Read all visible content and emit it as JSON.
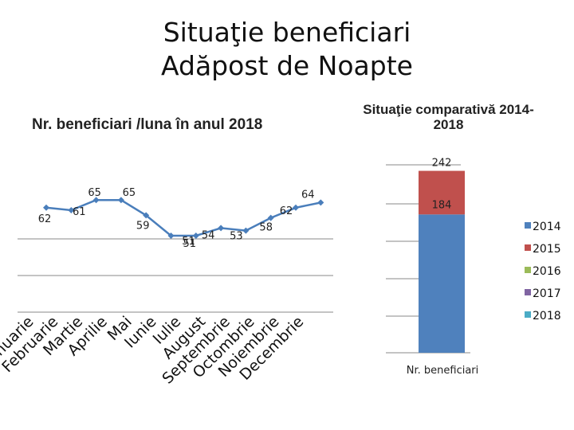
{
  "title_line1": "Situaţie beneficiari",
  "title_line2": "Adăpost de Noapte",
  "subtitle_left": "Nr. beneficiari /luna în anul 2018",
  "subtitle_right_line1": "Situaţie comparativă 2014-",
  "subtitle_right_line2": "2018",
  "colors": {
    "line": "#4a7ebb",
    "grid": "#8a8a8a",
    "s2014": "#4f81bd",
    "s2015": "#c0504d",
    "s2016": "#9bbb59",
    "s2017": "#8064a2",
    "s2018": "#4bacc6"
  },
  "chart_data": [
    {
      "type": "line",
      "title": "Nr. beneficiari /luna în anul 2018",
      "categories": [
        "Ianuarie",
        "Februarie",
        "Martie",
        "Aprilie",
        "Mai",
        "Iunie",
        "Iulie",
        "August",
        "Septembrie",
        "Octombrie",
        "Noiembrie",
        "Decembrie"
      ],
      "points": [
        62,
        61,
        65,
        65,
        59,
        51,
        51,
        54,
        53,
        58,
        62,
        64
      ],
      "label_order": [
        "62",
        "61",
        "65",
        "65",
        "59",
        "51",
        "51",
        "54",
        "53",
        "58",
        "62",
        "64"
      ],
      "ylim": [
        0,
        75
      ]
    },
    {
      "type": "bar",
      "stacked": true,
      "categories": [
        "Nr. beneficiari"
      ],
      "series": [
        {
          "name": "2014",
          "values": [
            184
          ]
        },
        {
          "name": "2015",
          "values": [
            58
          ]
        },
        {
          "name": "2016",
          "values": [
            0
          ]
        },
        {
          "name": "2017",
          "values": [
            0
          ]
        },
        {
          "name": "2018",
          "values": [
            0
          ]
        }
      ],
      "data_labels": [
        "184",
        "242"
      ],
      "xlabel": "Nr. beneficiari",
      "legend": "right"
    }
  ]
}
